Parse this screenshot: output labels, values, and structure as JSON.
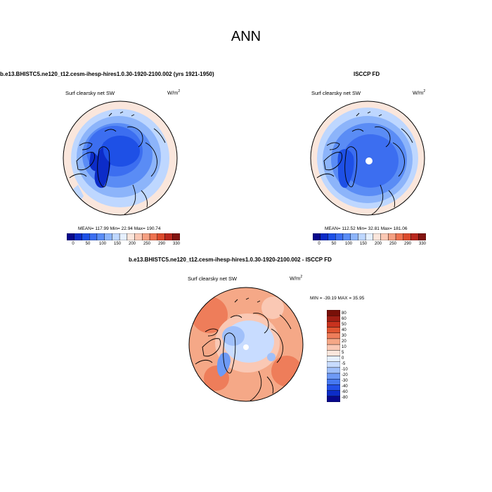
{
  "page_title": "ANN",
  "palette": {
    "abs": [
      "#08088c",
      "#0c2cc8",
      "#1e50e6",
      "#3c6ef0",
      "#5a8cf5",
      "#8cb4fa",
      "#bed7ff",
      "#e6f0ff",
      "#fae6dc",
      "#fac8b4",
      "#f5a082",
      "#ee7350",
      "#dc4b2d",
      "#b9281e",
      "#821410"
    ],
    "diff": [
      "#08088c",
      "#0c2cc8",
      "#2350e8",
      "#4678f0",
      "#6e9af5",
      "#a0c0fa",
      "#c8dcff",
      "#e6f0ff",
      "#fae6dc",
      "#fac8b4",
      "#f5a887",
      "#ee7d5a",
      "#e05532",
      "#c8321e",
      "#a01e14",
      "#781008"
    ]
  },
  "panels": [
    {
      "id": "model",
      "title": "b.e13.BHISTC5.ne120_t12.cesm-ihesp-hires1.0.30-1920-2100.002 (yrs 1921-1950)",
      "variable": "Surf clearsky net SW",
      "units_base": "W/m",
      "units_exp": "2",
      "stats": "MEAN= 117.99  Min=  22.94  Max= 190.74",
      "colorbar_ticks": [
        "0",
        "50",
        "100",
        "150",
        "200",
        "250",
        "290",
        "330"
      ]
    },
    {
      "id": "obs",
      "title": "ISCCP FD",
      "variable": "Surf clearsky net SW",
      "units_base": "W/m",
      "units_exp": "2",
      "stats": "MEAN= 112.52  Min=  32.81  Max= 181.06",
      "colorbar_ticks": [
        "0",
        "50",
        "100",
        "150",
        "200",
        "250",
        "290",
        "330"
      ]
    },
    {
      "id": "diff",
      "title": "b.e13.BHISTC5.ne120_t12.cesm-ihesp-hires1.0.30-1920-2100.002 - ISCCP FD",
      "variable": "Surf clearsky net SW",
      "units_base": "W/m",
      "units_exp": "2",
      "stats": "MIN = -39.19 MAX =  35.95",
      "colorbar_ticks": [
        "80",
        "60",
        "50",
        "40",
        "30",
        "20",
        "10",
        "5",
        "0",
        "-5",
        "-10",
        "-20",
        "-30",
        "-40",
        "-60",
        "-80"
      ]
    }
  ]
}
